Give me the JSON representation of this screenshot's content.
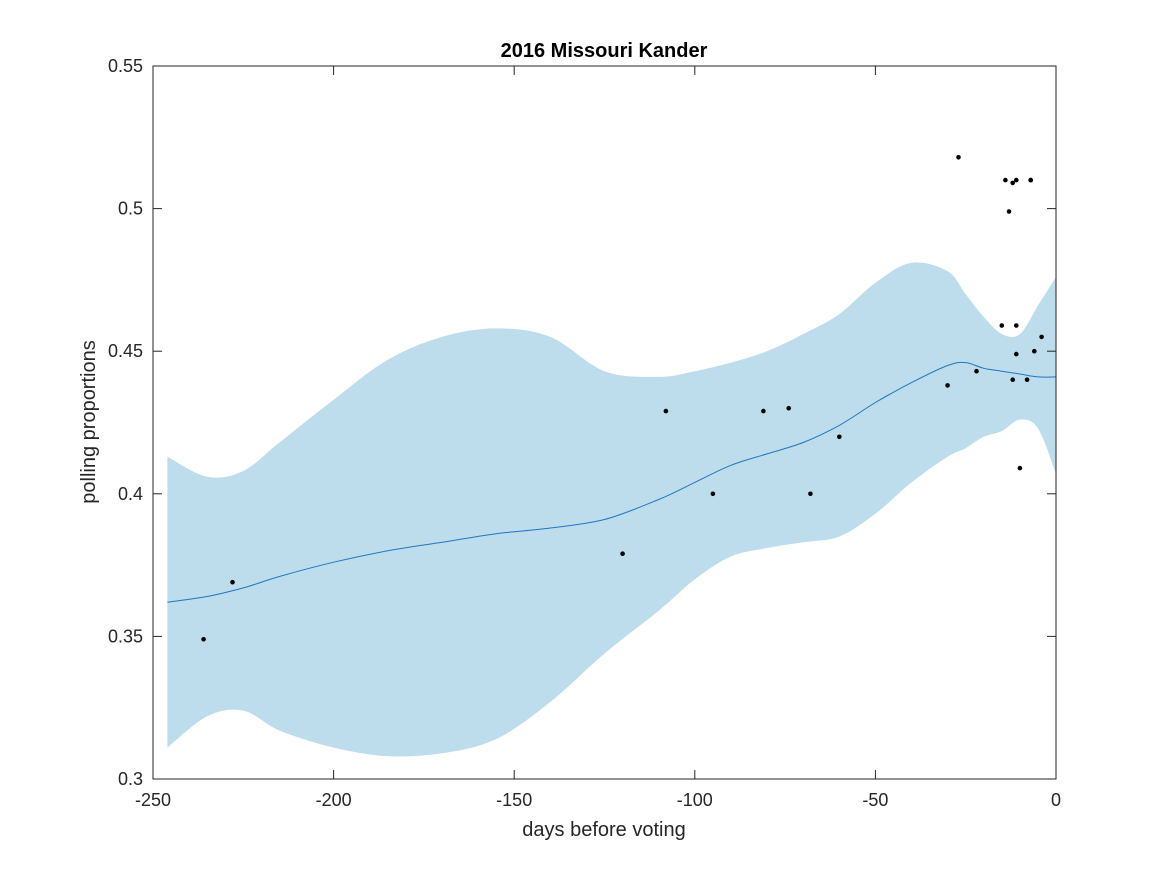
{
  "chart_data": {
    "type": "scatter",
    "title": "2016 Missouri Kander",
    "xlabel": "days before voting",
    "ylabel": "polling proportions",
    "xlim": [
      -250,
      0
    ],
    "ylim": [
      0.3,
      0.55
    ],
    "xticks": [
      -250,
      -200,
      -150,
      -100,
      -50,
      0
    ],
    "xtick_labels": [
      "-250",
      "-200",
      "-150",
      "-100",
      "-50",
      "0"
    ],
    "yticks": [
      0.3,
      0.35,
      0.4,
      0.45,
      0.5,
      0.55
    ],
    "ytick_labels": [
      "0.3",
      "0.35",
      "0.4",
      "0.45",
      "0.5",
      "0.55"
    ],
    "grid": false,
    "legend": "none",
    "colors": {
      "band": "#bddcec",
      "fit_line": "#1f77bf",
      "points": "#000000",
      "axes": "#262626"
    },
    "points": {
      "x": [
        -236,
        -228,
        -120,
        -108,
        -95,
        -81,
        -74,
        -68,
        -60,
        -30,
        -22,
        -27,
        -15,
        -14,
        -13,
        -12,
        -12,
        -11,
        -11,
        -11,
        -10,
        -8,
        -7,
        -7,
        -6,
        -4
      ],
      "y": [
        0.349,
        0.369,
        0.379,
        0.429,
        0.4,
        0.429,
        0.43,
        0.4,
        0.42,
        0.438,
        0.443,
        0.518,
        0.459,
        0.51,
        0.499,
        0.509,
        0.44,
        0.51,
        0.459,
        0.449,
        0.409,
        0.44,
        0.51,
        0.51,
        0.45,
        0.455
      ]
    },
    "fit": {
      "x": [
        -246,
        -235,
        -225,
        -215,
        -200,
        -185,
        -170,
        -155,
        -140,
        -125,
        -110,
        -100,
        -90,
        -80,
        -70,
        -60,
        -50,
        -40,
        -30,
        -25,
        -20,
        -15,
        -10,
        -5,
        0
      ],
      "mean": [
        0.362,
        0.364,
        0.367,
        0.371,
        0.376,
        0.38,
        0.383,
        0.386,
        0.388,
        0.391,
        0.398,
        0.404,
        0.41,
        0.414,
        0.418,
        0.424,
        0.432,
        0.439,
        0.445,
        0.446,
        0.444,
        0.443,
        0.442,
        0.441,
        0.441
      ],
      "upper": [
        0.413,
        0.406,
        0.408,
        0.418,
        0.433,
        0.447,
        0.455,
        0.458,
        0.455,
        0.443,
        0.441,
        0.443,
        0.446,
        0.45,
        0.456,
        0.463,
        0.474,
        0.481,
        0.478,
        0.47,
        0.462,
        0.456,
        0.456,
        0.466,
        0.476
      ],
      "lower": [
        0.311,
        0.322,
        0.324,
        0.317,
        0.311,
        0.308,
        0.309,
        0.314,
        0.327,
        0.344,
        0.359,
        0.37,
        0.378,
        0.381,
        0.383,
        0.385,
        0.393,
        0.404,
        0.413,
        0.416,
        0.42,
        0.422,
        0.426,
        0.423,
        0.407
      ]
    }
  }
}
